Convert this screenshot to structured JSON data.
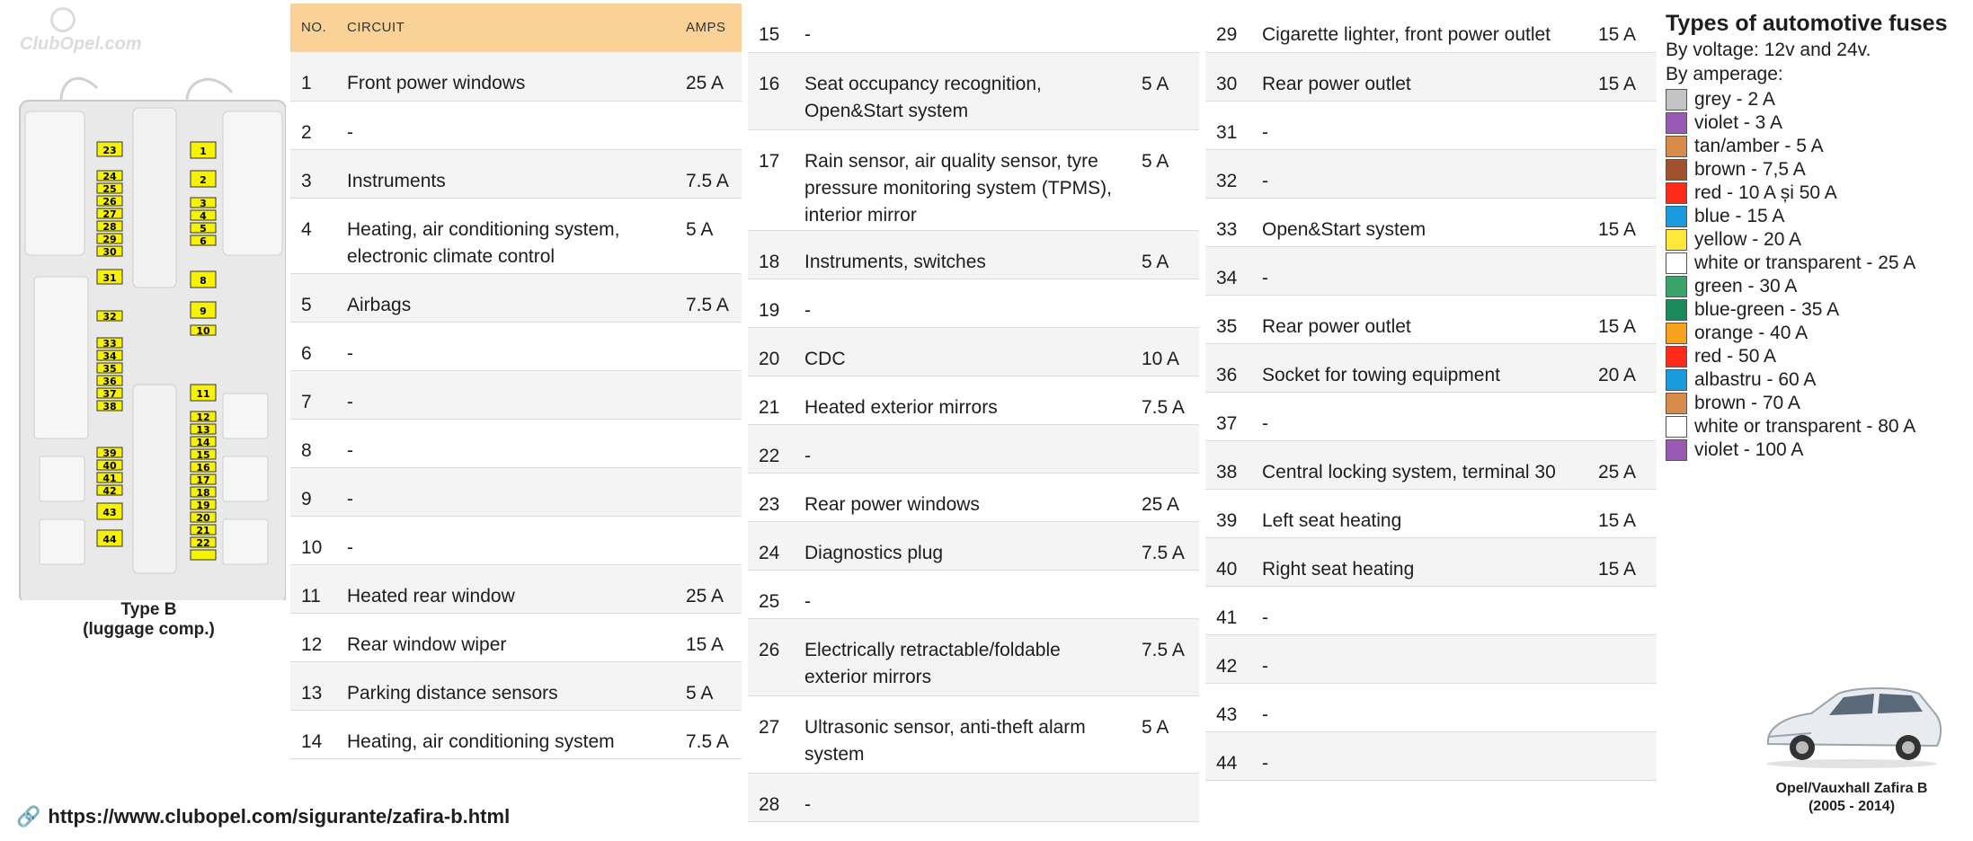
{
  "diagram": {
    "logo": "ClubOpel.com",
    "caption_line1": "Type B",
    "caption_line2": "(luggage comp.)",
    "fuse_color": "#f7f200"
  },
  "table": {
    "headers": {
      "no": "NO.",
      "circuit": "CIRCUIT",
      "amps": "AMPS"
    },
    "header_color": "#fad297",
    "columns": [
      [
        {
          "no": "1",
          "circuit": "Front power windows",
          "amps": "25 A"
        },
        {
          "no": "2",
          "circuit": "-",
          "amps": ""
        },
        {
          "no": "3",
          "circuit": "Instruments",
          "amps": "7.5 A"
        },
        {
          "no": "4",
          "circuit": "Heating, air conditioning system, electronic climate control",
          "amps": "5 A"
        },
        {
          "no": "5",
          "circuit": "Airbags",
          "amps": "7.5 A"
        },
        {
          "no": "6",
          "circuit": "-",
          "amps": ""
        },
        {
          "no": "7",
          "circuit": "-",
          "amps": ""
        },
        {
          "no": "8",
          "circuit": "-",
          "amps": ""
        },
        {
          "no": "9",
          "circuit": "-",
          "amps": ""
        },
        {
          "no": "10",
          "circuit": "-",
          "amps": ""
        },
        {
          "no": "11",
          "circuit": "Heated rear window",
          "amps": "25 A"
        },
        {
          "no": "12",
          "circuit": "Rear window wiper",
          "amps": "15 A"
        },
        {
          "no": "13",
          "circuit": "Parking distance sensors",
          "amps": "5 A"
        },
        {
          "no": "14",
          "circuit": "Heating, air conditioning system",
          "amps": "7.5 A"
        }
      ],
      [
        {
          "no": "15",
          "circuit": "-",
          "amps": ""
        },
        {
          "no": "16",
          "circuit": "Seat occupancy recognition, Open&Start system",
          "amps": "5 A"
        },
        {
          "no": "17",
          "circuit": "Rain sensor, air quality sensor, tyre pressure monitoring system (TPMS), interior mirror",
          "amps": "5 A"
        },
        {
          "no": "18",
          "circuit": "Instruments, switches",
          "amps": "5 A"
        },
        {
          "no": "19",
          "circuit": "-",
          "amps": ""
        },
        {
          "no": "20",
          "circuit": "CDC",
          "amps": "10 A"
        },
        {
          "no": "21",
          "circuit": "Heated exterior mirrors",
          "amps": "7.5 A"
        },
        {
          "no": "22",
          "circuit": "-",
          "amps": ""
        },
        {
          "no": "23",
          "circuit": "Rear power windows",
          "amps": "25 A"
        },
        {
          "no": "24",
          "circuit": "Diagnostics plug",
          "amps": "7.5 A"
        },
        {
          "no": "25",
          "circuit": "-",
          "amps": ""
        },
        {
          "no": "26",
          "circuit": "Electrically retractable/foldable exterior mirrors",
          "amps": "7.5 A"
        },
        {
          "no": "27",
          "circuit": "Ultrasonic sensor, anti-theft alarm system",
          "amps": "5 A"
        },
        {
          "no": "28",
          "circuit": "-",
          "amps": ""
        }
      ],
      [
        {
          "no": "29",
          "circuit": "Cigarette lighter, front power outlet",
          "amps": "15 A"
        },
        {
          "no": "30",
          "circuit": "Rear power outlet",
          "amps": "15 A"
        },
        {
          "no": "31",
          "circuit": "-",
          "amps": ""
        },
        {
          "no": "32",
          "circuit": "-",
          "amps": ""
        },
        {
          "no": "33",
          "circuit": "Open&Start system",
          "amps": "15 A"
        },
        {
          "no": "34",
          "circuit": "-",
          "amps": ""
        },
        {
          "no": "35",
          "circuit": "Rear power outlet",
          "amps": "15 A"
        },
        {
          "no": "36",
          "circuit": "Socket for towing equipment",
          "amps": "20 A"
        },
        {
          "no": "37",
          "circuit": "-",
          "amps": ""
        },
        {
          "no": "38",
          "circuit": "Central locking system, terminal 30",
          "amps": "25 A"
        },
        {
          "no": "39",
          "circuit": "Left seat heating",
          "amps": "15 A"
        },
        {
          "no": "40",
          "circuit": "Right seat heating",
          "amps": "15 A"
        },
        {
          "no": "41",
          "circuit": "-",
          "amps": ""
        },
        {
          "no": "42",
          "circuit": "-",
          "amps": ""
        },
        {
          "no": "43",
          "circuit": "-",
          "amps": ""
        },
        {
          "no": "44",
          "circuit": "-",
          "amps": ""
        }
      ]
    ]
  },
  "legend": {
    "title": "Types of automotive fuses",
    "voltage": "By voltage: 12v and 24v.",
    "amperage": "By amperage:",
    "items": [
      {
        "label": "grey - 2 A",
        "color": "#c4c4c4"
      },
      {
        "label": "violet - 3 A",
        "color": "#9b59b6"
      },
      {
        "label": "tan/amber - 5 A",
        "color": "#d98c4a"
      },
      {
        "label": "brown - 7,5 A",
        "color": "#a0522d"
      },
      {
        "label": "red - 10 A și 50 A",
        "color": "#ff2a1a"
      },
      {
        "label": "blue - 15 A",
        "color": "#1a9be0"
      },
      {
        "label": "yellow - 20 A",
        "color": "#ffe83a"
      },
      {
        "label": "white or transparent - 25 A",
        "color": "#ffffff"
      },
      {
        "label": "green - 30 A",
        "color": "#3aa36a"
      },
      {
        "label": "blue-green - 35 A",
        "color": "#1a8a5a"
      },
      {
        "label": "orange - 40 A",
        "color": "#f7a21d"
      },
      {
        "label": "red - 50 A",
        "color": "#ff2a1a"
      },
      {
        "label": "albastru - 60 A",
        "color": "#1a9be0"
      },
      {
        "label": "brown - 70 A",
        "color": "#d98c4a"
      },
      {
        "label": "white or transparent - 80 A",
        "color": "#ffffff"
      },
      {
        "label": "violet - 100 A",
        "color": "#9b59b6"
      }
    ]
  },
  "footer": {
    "link_icon": "link-icon",
    "link": "https://www.clubopel.com/sigurante/zafira-b.html"
  },
  "car": {
    "caption_line1": "Opel/Vauxhall Zafira B",
    "caption_line2": "(2005 - 2014)"
  }
}
